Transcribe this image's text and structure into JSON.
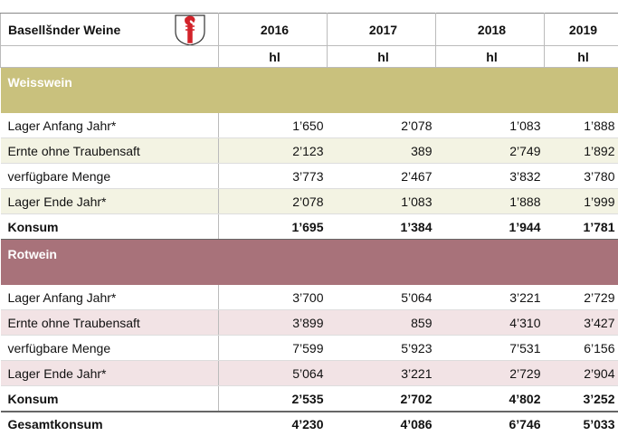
{
  "header": {
    "title": "Basellšnder Weine",
    "years": [
      "2016",
      "2017",
      "2018",
      "2019"
    ],
    "units": [
      "hl",
      "hl",
      "hl",
      "hl"
    ]
  },
  "sections": [
    {
      "name": "Weisswein",
      "color": "#c9c17d",
      "stripe": "#f3f3e3",
      "rows": [
        {
          "label": "Lager Anfang Jahr*",
          "values": [
            "1’650",
            "2’078",
            "1’083",
            "1’888"
          ]
        },
        {
          "label": "Ernte ohne Traubensaft",
          "values": [
            "2’123",
            "389",
            "2’749",
            "1’892"
          ]
        },
        {
          "label": "verfügbare Menge",
          "values": [
            "3’773",
            "2’467",
            "3’832",
            "3’780"
          ]
        },
        {
          "label": "Lager Ende Jahr*",
          "values": [
            "2’078",
            "1’083",
            "1’888",
            "1’999"
          ]
        },
        {
          "label": "Konsum",
          "values": [
            "1’695",
            "1’384",
            "1’944",
            "1’781"
          ]
        }
      ]
    },
    {
      "name": "Rotwein",
      "color": "#a8727a",
      "stripe": "#f2e3e5",
      "rows": [
        {
          "label": "Lager Anfang Jahr*",
          "values": [
            "3’700",
            "5’064",
            "3’221",
            "2’729"
          ]
        },
        {
          "label": "Ernte ohne Traubensaft",
          "values": [
            "3’899",
            "859",
            "4’310",
            "3’427"
          ]
        },
        {
          "label": "verfügbare Menge",
          "values": [
            "7’599",
            "5’923",
            "7’531",
            "6’156"
          ]
        },
        {
          "label": "Lager Ende Jahr*",
          "values": [
            "5’064",
            "3’221",
            "2’729",
            "2’904"
          ]
        },
        {
          "label": "Konsum",
          "values": [
            "2’535",
            "2’702",
            "4’802",
            "3’252"
          ]
        }
      ]
    }
  ],
  "total": {
    "label": "Gesamtkonsum",
    "values": [
      "4’230",
      "4’086",
      "6’746",
      "5’033"
    ]
  }
}
